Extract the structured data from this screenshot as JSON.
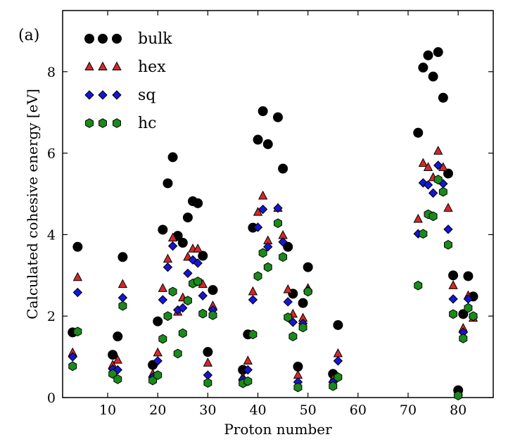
{
  "panel_label": "(a)",
  "chart_data": {
    "type": "scatter",
    "xlabel": "Proton number",
    "ylabel": "Calculated cohesive energy [eV]",
    "xlim": [
      1,
      87
    ],
    "ylim": [
      0,
      9.5
    ],
    "xticks": [
      10,
      20,
      30,
      40,
      50,
      60,
      70,
      80
    ],
    "yticks": [
      0,
      2,
      4,
      6,
      8
    ],
    "legend_position": "top-left",
    "grid": false,
    "series": [
      {
        "name": "bulk",
        "marker": "circle",
        "color": "#000000",
        "points": [
          [
            3,
            1.6
          ],
          [
            4,
            3.7
          ],
          [
            11,
            1.05
          ],
          [
            12,
            1.5
          ],
          [
            13,
            3.45
          ],
          [
            19,
            0.8
          ],
          [
            20,
            1.87
          ],
          [
            21,
            4.12
          ],
          [
            22,
            5.26
          ],
          [
            23,
            5.9
          ],
          [
            24,
            3.97
          ],
          [
            25,
            3.8
          ],
          [
            26,
            4.42
          ],
          [
            27,
            4.82
          ],
          [
            28,
            4.77
          ],
          [
            29,
            3.48
          ],
          [
            30,
            1.12
          ],
          [
            31,
            2.64
          ],
          [
            37,
            0.68
          ],
          [
            38,
            1.55
          ],
          [
            39,
            4.17
          ],
          [
            40,
            6.33
          ],
          [
            41,
            7.03
          ],
          [
            42,
            6.22
          ],
          [
            44,
            6.88
          ],
          [
            45,
            5.62
          ],
          [
            46,
            3.7
          ],
          [
            47,
            2.55
          ],
          [
            48,
            0.76
          ],
          [
            49,
            2.32
          ],
          [
            50,
            3.2
          ],
          [
            55,
            0.58
          ],
          [
            56,
            1.78
          ],
          [
            72,
            6.5
          ],
          [
            73,
            8.1
          ],
          [
            74,
            8.4
          ],
          [
            75,
            7.88
          ],
          [
            76,
            8.48
          ],
          [
            77,
            7.36
          ],
          [
            78,
            5.5
          ],
          [
            79,
            3.0
          ],
          [
            80,
            0.18
          ],
          [
            81,
            2.05
          ],
          [
            82,
            2.98
          ],
          [
            83,
            2.48
          ]
        ]
      },
      {
        "name": "hex",
        "marker": "triangle",
        "color": "#d62728",
        "points": [
          [
            3,
            1.1
          ],
          [
            4,
            2.95
          ],
          [
            11,
            0.8
          ],
          [
            12,
            0.92
          ],
          [
            13,
            2.78
          ],
          [
            19,
            0.58
          ],
          [
            20,
            1.1
          ],
          [
            21,
            2.68
          ],
          [
            22,
            3.4
          ],
          [
            23,
            3.92
          ],
          [
            24,
            2.1
          ],
          [
            25,
            2.45
          ],
          [
            26,
            3.45
          ],
          [
            27,
            3.65
          ],
          [
            28,
            3.65
          ],
          [
            29,
            2.78
          ],
          [
            30,
            0.85
          ],
          [
            31,
            2.25
          ],
          [
            37,
            0.5
          ],
          [
            38,
            0.9
          ],
          [
            39,
            2.6
          ],
          [
            40,
            4.55
          ],
          [
            41,
            4.95
          ],
          [
            42,
            3.85
          ],
          [
            44,
            4.65
          ],
          [
            45,
            3.98
          ],
          [
            46,
            2.65
          ],
          [
            47,
            2.05
          ],
          [
            48,
            0.55
          ],
          [
            49,
            1.95
          ],
          [
            50,
            2.68
          ],
          [
            55,
            0.45
          ],
          [
            56,
            1.08
          ],
          [
            72,
            4.38
          ],
          [
            73,
            5.75
          ],
          [
            74,
            5.65
          ],
          [
            75,
            5.4
          ],
          [
            76,
            6.05
          ],
          [
            77,
            5.65
          ],
          [
            78,
            4.65
          ],
          [
            79,
            2.75
          ],
          [
            80,
            0.08
          ],
          [
            81,
            1.7
          ],
          [
            82,
            2.5
          ],
          [
            83,
            1.95
          ]
        ]
      },
      {
        "name": "sq",
        "marker": "diamond",
        "color": "#1515d4",
        "points": [
          [
            3,
            1.0
          ],
          [
            4,
            2.58
          ],
          [
            11,
            0.7
          ],
          [
            12,
            0.68
          ],
          [
            13,
            2.45
          ],
          [
            19,
            0.5
          ],
          [
            20,
            0.9
          ],
          [
            21,
            2.4
          ],
          [
            22,
            3.2
          ],
          [
            23,
            3.72
          ],
          [
            24,
            2.15
          ],
          [
            25,
            2.2
          ],
          [
            26,
            3.05
          ],
          [
            27,
            3.38
          ],
          [
            28,
            3.3
          ],
          [
            29,
            2.5
          ],
          [
            30,
            0.55
          ],
          [
            31,
            2.15
          ],
          [
            37,
            0.45
          ],
          [
            38,
            0.68
          ],
          [
            39,
            2.4
          ],
          [
            40,
            4.18
          ],
          [
            41,
            4.62
          ],
          [
            42,
            3.7
          ],
          [
            44,
            4.65
          ],
          [
            45,
            3.82
          ],
          [
            46,
            2.35
          ],
          [
            47,
            1.85
          ],
          [
            48,
            0.38
          ],
          [
            49,
            1.82
          ],
          [
            50,
            2.62
          ],
          [
            55,
            0.38
          ],
          [
            56,
            0.9
          ],
          [
            72,
            4.02
          ],
          [
            73,
            5.27
          ],
          [
            74,
            5.22
          ],
          [
            75,
            5.02
          ],
          [
            76,
            5.7
          ],
          [
            77,
            5.25
          ],
          [
            78,
            4.13
          ],
          [
            79,
            2.42
          ],
          [
            80,
            0.06
          ],
          [
            81,
            1.6
          ],
          [
            82,
            2.42
          ],
          [
            83,
            1.98
          ]
        ]
      },
      {
        "name": "hc",
        "marker": "hexagon",
        "color": "#1a8a1a",
        "points": [
          [
            3,
            0.77
          ],
          [
            4,
            1.62
          ],
          [
            11,
            0.58
          ],
          [
            12,
            0.45
          ],
          [
            13,
            2.25
          ],
          [
            19,
            0.42
          ],
          [
            20,
            0.55
          ],
          [
            21,
            1.44
          ],
          [
            22,
            2.0
          ],
          [
            23,
            2.6
          ],
          [
            24,
            1.08
          ],
          [
            25,
            1.58
          ],
          [
            26,
            2.38
          ],
          [
            27,
            2.8
          ],
          [
            28,
            2.85
          ],
          [
            29,
            2.06
          ],
          [
            30,
            0.36
          ],
          [
            31,
            2.02
          ],
          [
            37,
            0.35
          ],
          [
            38,
            0.4
          ],
          [
            39,
            1.55
          ],
          [
            40,
            2.98
          ],
          [
            41,
            3.55
          ],
          [
            42,
            3.2
          ],
          [
            44,
            4.28
          ],
          [
            45,
            3.45
          ],
          [
            46,
            1.97
          ],
          [
            47,
            1.5
          ],
          [
            48,
            0.25
          ],
          [
            49,
            1.72
          ],
          [
            50,
            2.6
          ],
          [
            55,
            0.28
          ],
          [
            56,
            0.5
          ],
          [
            72,
            2.75
          ],
          [
            73,
            4.02
          ],
          [
            74,
            4.5
          ],
          [
            75,
            4.45
          ],
          [
            76,
            5.35
          ],
          [
            77,
            5.05
          ],
          [
            78,
            3.75
          ],
          [
            79,
            2.05
          ],
          [
            80,
            0.05
          ],
          [
            81,
            1.45
          ],
          [
            82,
            2.2
          ],
          [
            83,
            2.0
          ]
        ]
      }
    ]
  }
}
